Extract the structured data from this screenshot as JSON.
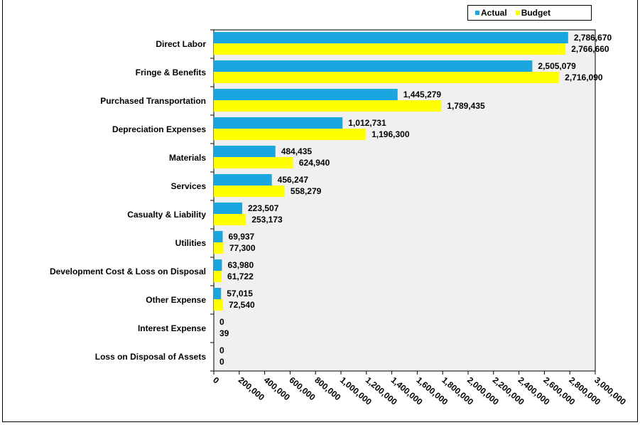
{
  "chart_data": {
    "type": "bar",
    "orientation": "horizontal",
    "title": "",
    "xlabel": "",
    "ylabel": "",
    "categories": [
      "Direct Labor",
      "Fringe & Benefits",
      "Purchased Transportation",
      "Depreciation Expenses",
      "Materials",
      "Services",
      "Casualty & Liability",
      "Utilities",
      "Development Cost & Loss on Disposal",
      "Other Expense",
      "Interest Expense",
      "Loss on Disposal of Assets"
    ],
    "series": [
      {
        "name": "Actual",
        "color": "#1aa7e0",
        "values": [
          2786670,
          2505079,
          1445279,
          1012731,
          484435,
          456247,
          223507,
          69937,
          63980,
          57015,
          0,
          0
        ],
        "labels": [
          "2,786,670",
          "2,505,079",
          "1,445,279",
          "1,012,731",
          "484,435",
          "456,247",
          "223,507",
          "69,937",
          "63,980",
          "57,015",
          "0",
          "0"
        ]
      },
      {
        "name": "Budget",
        "color": "#ffff00",
        "values": [
          2766660,
          2716090,
          1789435,
          1196300,
          624940,
          558279,
          253173,
          77300,
          61722,
          72540,
          39,
          0
        ],
        "labels": [
          "2,766,660",
          "2,716,090",
          "1,789,435",
          "1,196,300",
          "624,940",
          "558,279",
          "253,173",
          "77,300",
          "61,722",
          "72,540",
          "39",
          "0"
        ]
      }
    ],
    "xlim": [
      0,
      3000000
    ],
    "xticks": [
      0,
      200000,
      400000,
      600000,
      800000,
      1000000,
      1200000,
      1400000,
      1600000,
      1800000,
      2000000,
      2200000,
      2400000,
      2600000,
      2800000,
      3000000
    ],
    "xtick_labels": [
      "0",
      "200,000",
      "400,000",
      "600,000",
      "800,000",
      "1,000,000",
      "1,200,000",
      "1,400,000",
      "1,600,000",
      "1,800,000",
      "2,000,000",
      "2,200,000",
      "2,400,000",
      "2,600,000",
      "2,800,000",
      "3,000,000"
    ],
    "grid": false,
    "legend": "top-right",
    "plot_background": "#f0f0f0"
  },
  "legend": {
    "actual_label": "Actual",
    "budget_label": "Budget"
  }
}
